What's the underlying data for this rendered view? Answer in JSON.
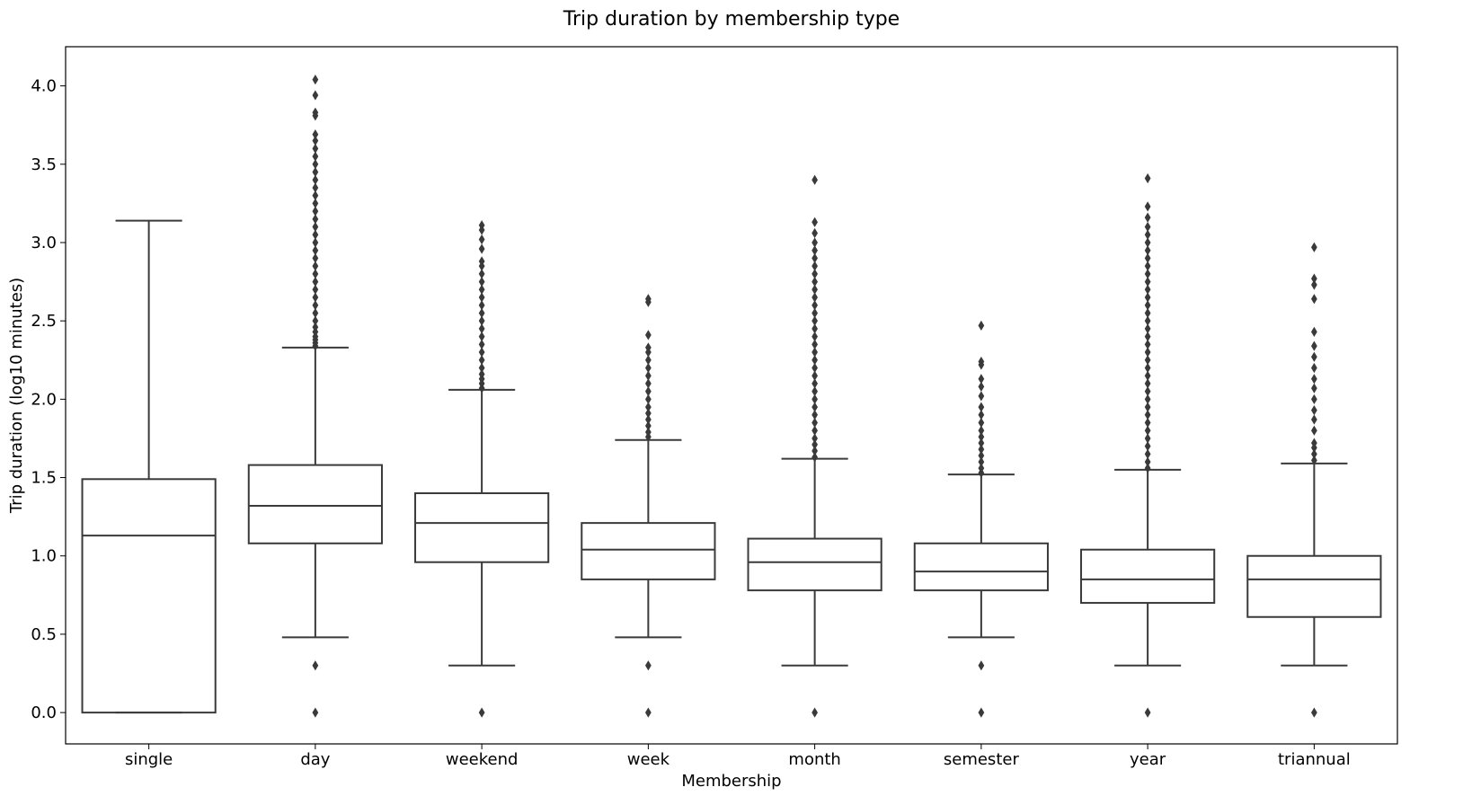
{
  "chart_data": {
    "type": "box",
    "title": "Trip duration by membership type",
    "xlabel": "Membership",
    "ylabel": "Trip duration (log10 minutes)",
    "ylim": [
      -0.2,
      4.25
    ],
    "yticks": [
      0.0,
      0.5,
      1.0,
      1.5,
      2.0,
      2.5,
      3.0,
      3.5,
      4.0
    ],
    "ytick_labels": [
      "0.0",
      "0.5",
      "1.0",
      "1.5",
      "2.0",
      "2.5",
      "3.0",
      "3.5",
      "4.0"
    ],
    "grid": false,
    "categories": [
      "single",
      "day",
      "weekend",
      "week",
      "month",
      "semester",
      "year",
      "triannual"
    ],
    "series": [
      {
        "category": "single",
        "color": "#3274a1",
        "whisker_low": 0.0,
        "q1": 0.0,
        "median": 1.13,
        "q3": 1.49,
        "whisker_high": 3.14,
        "outliers": []
      },
      {
        "category": "day",
        "color": "#e1812c",
        "whisker_low": 0.48,
        "q1": 1.08,
        "median": 1.32,
        "q3": 1.58,
        "whisker_high": 2.33,
        "outliers": [
          0.0,
          0.3,
          2.34,
          2.36,
          2.38,
          2.4,
          2.43,
          2.46,
          2.5,
          2.55,
          2.6,
          2.65,
          2.7,
          2.75,
          2.8,
          2.85,
          2.9,
          2.95,
          3.0,
          3.05,
          3.1,
          3.15,
          3.2,
          3.25,
          3.3,
          3.35,
          3.4,
          3.45,
          3.5,
          3.55,
          3.6,
          3.65,
          3.69,
          3.81,
          3.83,
          3.94,
          4.04
        ]
      },
      {
        "category": "weekend",
        "color": "#3a923a",
        "whisker_low": 0.3,
        "q1": 0.96,
        "median": 1.21,
        "q3": 1.4,
        "whisker_high": 2.06,
        "outliers": [
          0.0,
          2.07,
          2.1,
          2.13,
          2.16,
          2.2,
          2.25,
          2.3,
          2.35,
          2.4,
          2.45,
          2.5,
          2.55,
          2.6,
          2.65,
          2.7,
          2.75,
          2.8,
          2.85,
          2.88,
          2.96,
          3.02,
          3.08,
          3.11
        ]
      },
      {
        "category": "week",
        "color": "#c03d3e",
        "whisker_low": 0.48,
        "q1": 0.85,
        "median": 1.04,
        "q3": 1.21,
        "whisker_high": 1.74,
        "outliers": [
          0.0,
          0.3,
          1.76,
          1.79,
          1.83,
          1.87,
          1.91,
          1.95,
          2.0,
          2.05,
          2.1,
          2.15,
          2.2,
          2.25,
          2.3,
          2.33,
          2.41,
          2.62,
          2.64
        ]
      },
      {
        "category": "month",
        "color": "#9372b2",
        "whisker_low": 0.3,
        "q1": 0.78,
        "median": 0.96,
        "q3": 1.11,
        "whisker_high": 1.62,
        "outliers": [
          0.0,
          1.63,
          1.67,
          1.71,
          1.75,
          1.8,
          1.85,
          1.9,
          1.95,
          2.0,
          2.05,
          2.1,
          2.15,
          2.2,
          2.25,
          2.3,
          2.35,
          2.4,
          2.45,
          2.5,
          2.55,
          2.6,
          2.65,
          2.7,
          2.75,
          2.8,
          2.85,
          2.9,
          2.95,
          3.0,
          3.06,
          3.13,
          3.4
        ]
      },
      {
        "category": "semester",
        "color": "#845b53",
        "whisker_low": 0.48,
        "q1": 0.78,
        "median": 0.9,
        "q3": 1.08,
        "whisker_high": 1.52,
        "outliers": [
          0.0,
          0.3,
          1.53,
          1.56,
          1.6,
          1.64,
          1.68,
          1.72,
          1.76,
          1.8,
          1.85,
          1.9,
          1.95,
          2.02,
          2.08,
          2.13,
          2.22,
          2.24,
          2.47
        ]
      },
      {
        "category": "year",
        "color": "#d684bd",
        "whisker_low": 0.3,
        "q1": 0.7,
        "median": 0.85,
        "q3": 1.04,
        "whisker_high": 1.55,
        "outliers": [
          0.0,
          1.56,
          1.6,
          1.65,
          1.7,
          1.75,
          1.8,
          1.85,
          1.9,
          1.95,
          2.0,
          2.05,
          2.1,
          2.15,
          2.2,
          2.25,
          2.3,
          2.35,
          2.4,
          2.45,
          2.5,
          2.55,
          2.6,
          2.65,
          2.7,
          2.75,
          2.8,
          2.85,
          2.9,
          2.95,
          3.0,
          3.05,
          3.1,
          3.16,
          3.23,
          3.41
        ]
      },
      {
        "category": "triannual",
        "color": "#7f7f7f",
        "whisker_low": 0.3,
        "q1": 0.61,
        "median": 0.85,
        "q3": 1.0,
        "whisker_high": 1.59,
        "outliers": [
          0.0,
          1.61,
          1.65,
          1.69,
          1.72,
          1.8,
          1.87,
          1.93,
          2.0,
          2.07,
          2.13,
          2.2,
          2.27,
          2.34,
          2.43,
          2.64,
          2.73,
          2.77,
          2.97
        ]
      }
    ]
  }
}
